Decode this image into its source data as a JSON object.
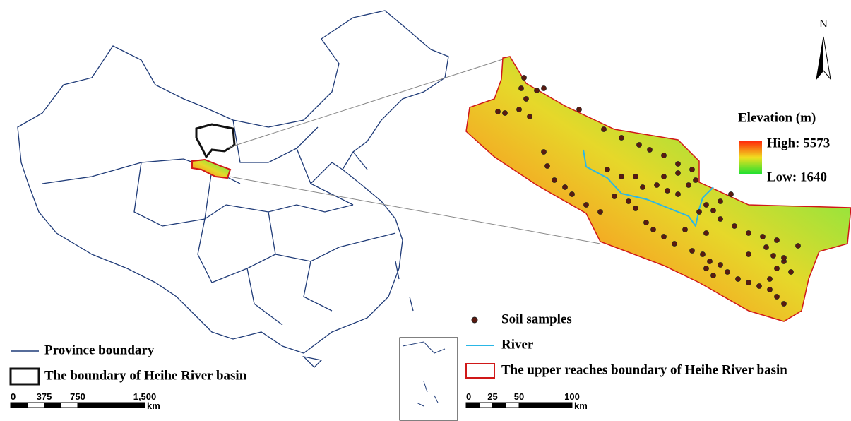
{
  "north_arrow": "N",
  "elevation_legend": {
    "title": "Elevation (m)",
    "high": "High: 5573",
    "low": "Low: 1640"
  },
  "legend_right": {
    "items": [
      "Soil samples",
      "River",
      "The upper reaches boundary of Heihe River basin"
    ]
  },
  "legend_left": {
    "items": [
      "Province boundary",
      "The boundary of Heihe River basin"
    ]
  },
  "scale_bars": [
    {
      "labels": [
        "0",
        "375",
        "750",
        "1,500"
      ],
      "unit": "km"
    },
    {
      "labels": [
        "0",
        "25",
        "50",
        "100"
      ],
      "unit": "km"
    }
  ]
}
